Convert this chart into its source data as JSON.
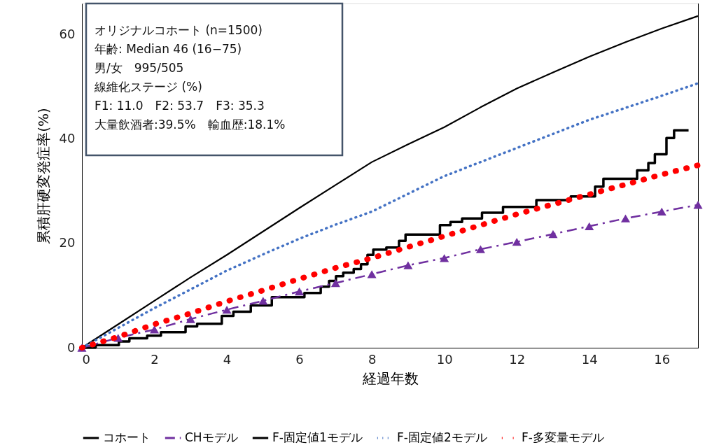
{
  "chart_data": {
    "type": "line",
    "xlabel": "経過年数",
    "ylabel": "累積肝硬変発症率(%)",
    "xlim": [
      0,
      17
    ],
    "ylim": [
      0,
      66
    ],
    "xticks": [
      0,
      2,
      4,
      6,
      8,
      10,
      12,
      14,
      16
    ],
    "yticks": [
      0,
      20,
      40,
      60
    ],
    "grid": false,
    "legend": "bottom",
    "annotations": [
      "オリジナルコホート (n=1500)",
      "年齢: Median 46 (16−75)",
      "男/女　995/505",
      "線維化ステージ (%)",
      "F1: 11.0　F2: 53.7　F3: 35.3",
      "大量飲酒者:39.5%　輸血歴:18.1%"
    ],
    "series": [
      {
        "name": "コホート",
        "type": "step",
        "color": "#000000",
        "line_style": "solid",
        "marker": "none",
        "x": [
          0,
          0.38,
          1.02,
          1.31,
          1.8,
          2.18,
          2.86,
          3.18,
          3.86,
          4.18,
          4.66,
          5.24,
          6.14,
          6.59,
          6.82,
          7.01,
          7.21,
          7.5,
          7.7,
          7.88,
          8.04,
          8.4,
          8.75,
          8.93,
          9.88,
          10.17,
          10.49,
          11.04,
          11.62,
          12.54,
          13.49,
          14.16,
          14.39,
          15.32,
          15.63,
          15.81,
          16.13,
          16.34,
          16.74
        ],
        "values": [
          0,
          0.5,
          1.2,
          1.8,
          2.3,
          3.0,
          4.1,
          4.6,
          6.1,
          6.9,
          8.1,
          9.7,
          10.5,
          11.7,
          12.8,
          13.7,
          14.4,
          15.1,
          16.0,
          17.8,
          18.8,
          19.2,
          20.5,
          21.7,
          23.5,
          24.1,
          24.8,
          25.9,
          27.0,
          28.3,
          29.0,
          30.9,
          32.4,
          34.0,
          35.4,
          37.1,
          40.2,
          41.7,
          41.7
        ]
      },
      {
        "name": "CHモデル",
        "color": "#7030a0",
        "line_style": "dashed",
        "marker": "triangle",
        "x": [
          0,
          1,
          2,
          3,
          4,
          5,
          6,
          7,
          8,
          9,
          10,
          11,
          12,
          13,
          14,
          15,
          16,
          17
        ],
        "values": [
          0,
          1.9,
          3.5,
          5.5,
          7.3,
          9.0,
          10.8,
          12.4,
          14.1,
          15.8,
          17.2,
          18.9,
          20.3,
          21.8,
          23.3,
          24.8,
          26.1,
          27.4
        ]
      },
      {
        "name": "F-固定値1モデル",
        "color": "#000000",
        "line_style": "solid",
        "marker": "none",
        "x": [
          0,
          1,
          2,
          3,
          4,
          5,
          6,
          7,
          8,
          9,
          10,
          11,
          12,
          13,
          14,
          15,
          16,
          17
        ],
        "values": [
          0,
          4.5,
          9.0,
          13.5,
          17.8,
          22.3,
          26.8,
          31.2,
          35.6,
          39.0,
          42.3,
          46.1,
          49.7,
          52.8,
          55.8,
          58.6,
          61.2,
          63.6
        ]
      },
      {
        "name": "F-固定値2モデル",
        "color": "#4472c4",
        "line_style": "dotted",
        "marker": "none",
        "x": [
          0,
          1,
          2,
          3,
          4,
          5,
          6,
          7,
          8,
          9,
          10,
          11,
          12,
          13,
          14,
          15,
          16,
          17
        ],
        "values": [
          0,
          3.8,
          7.6,
          11.2,
          14.8,
          17.9,
          20.9,
          23.6,
          26.1,
          29.5,
          32.9,
          35.6,
          38.3,
          41.0,
          43.7,
          46.0,
          48.3,
          50.7
        ]
      },
      {
        "name": "F-多変量モデル",
        "color": "#ff0000",
        "line_style": "dotted",
        "marker": "none",
        "x": [
          0,
          1,
          2,
          3,
          4,
          5,
          6,
          7,
          8,
          9,
          10,
          11,
          12,
          13,
          14,
          15,
          16,
          17
        ],
        "values": [
          0,
          2.1,
          4.5,
          6.6,
          8.9,
          11.0,
          13.2,
          15.3,
          17.2,
          19.3,
          21.4,
          23.5,
          25.6,
          27.5,
          29.4,
          31.3,
          33.2,
          35.0
        ]
      }
    ]
  }
}
